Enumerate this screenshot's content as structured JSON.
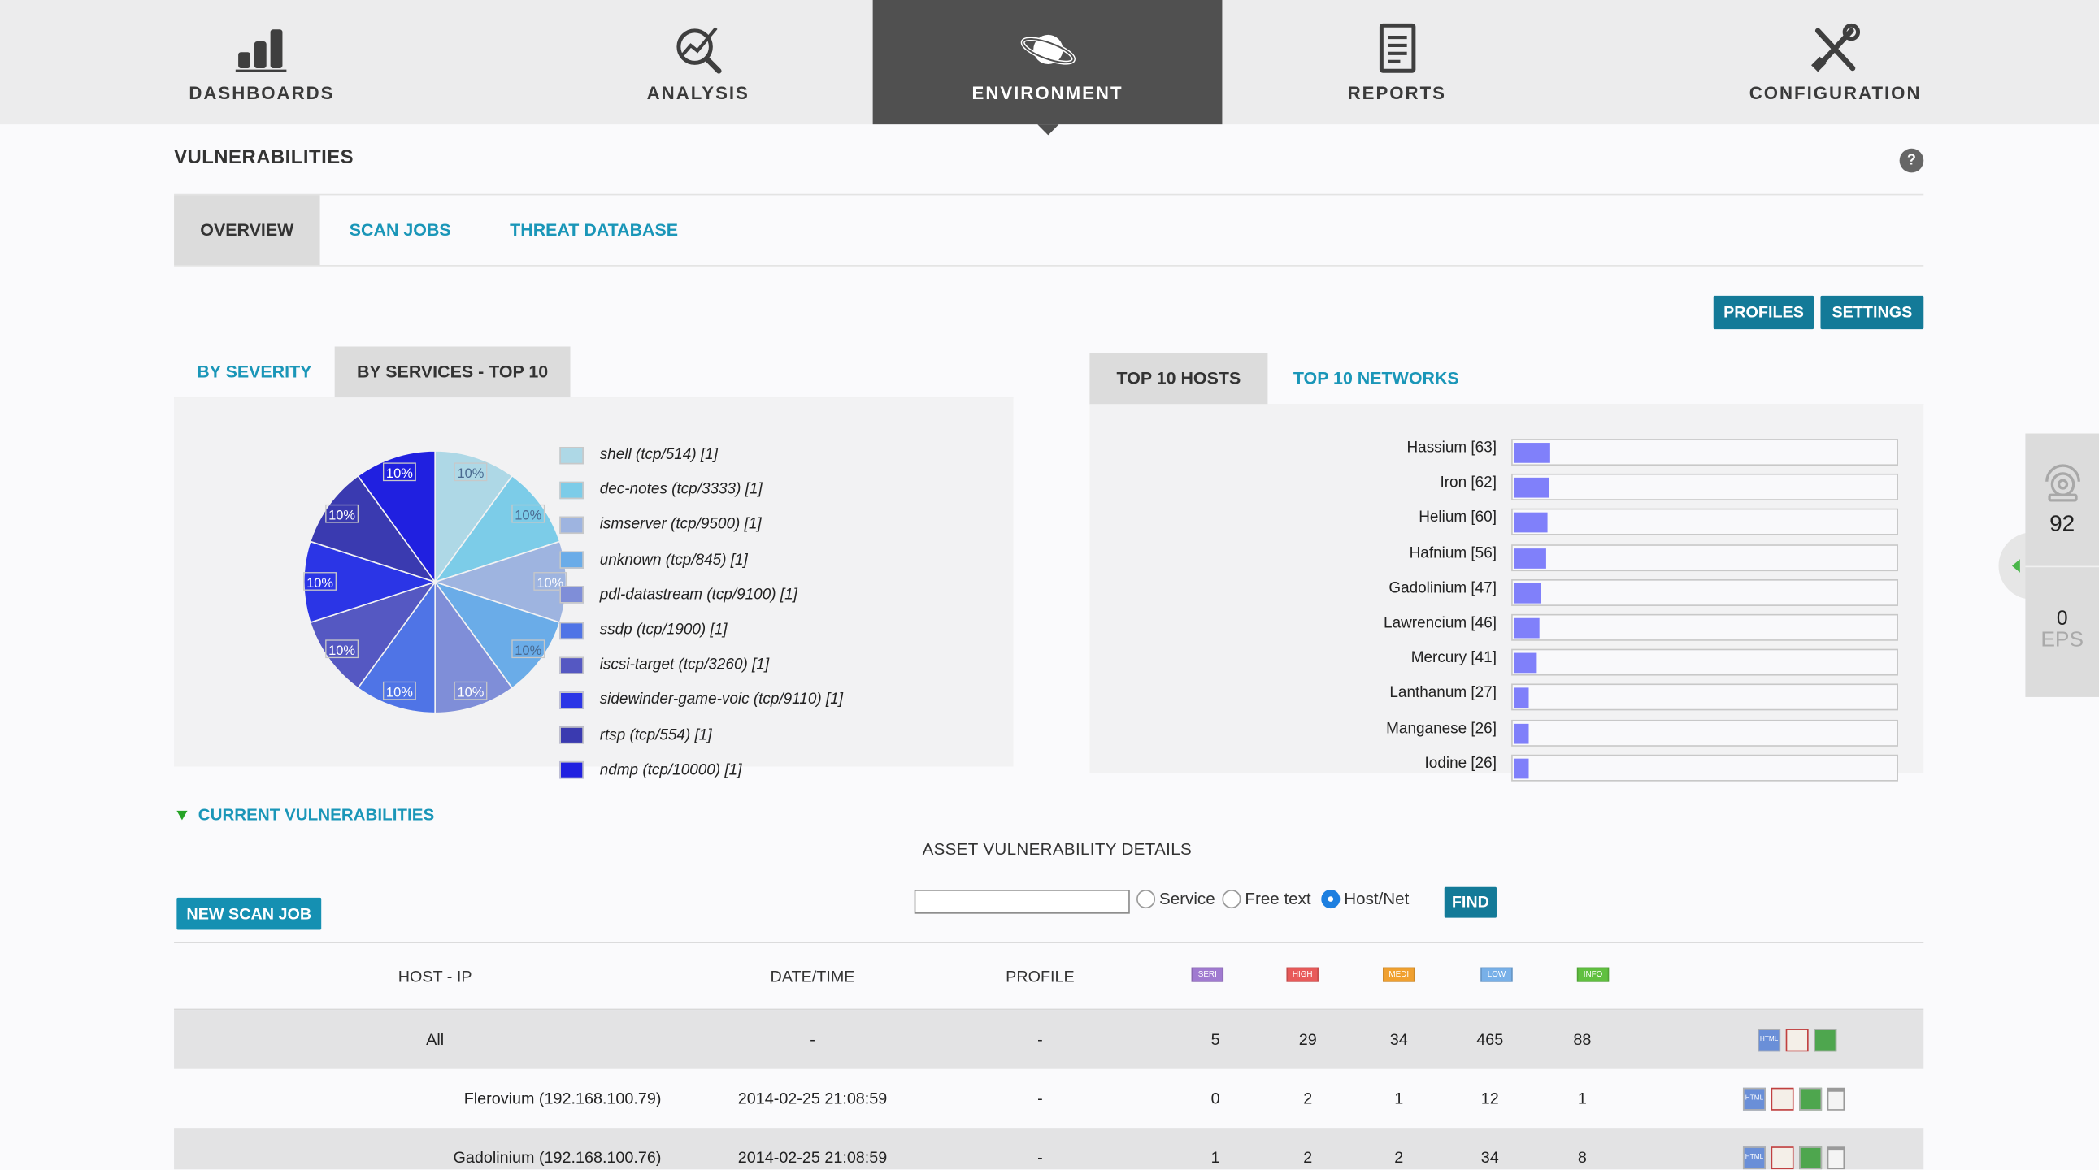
{
  "nav": {
    "items": [
      {
        "label": "DASHBOARDS",
        "icon": "bar-chart-icon"
      },
      {
        "label": "ANALYSIS",
        "icon": "magnifier-chart-icon"
      },
      {
        "label": "ENVIRONMENT",
        "icon": "planet-icon",
        "active": true
      },
      {
        "label": "REPORTS",
        "icon": "document-icon"
      },
      {
        "label": "CONFIGURATION",
        "icon": "tools-icon"
      }
    ]
  },
  "page": {
    "title": "VULNERABILITIES",
    "help": "?"
  },
  "tabs": {
    "overview": "OVERVIEW",
    "scan_jobs": "SCAN JOBS",
    "threat_db": "THREAT DATABASE"
  },
  "buttons": {
    "profiles": "PROFILES",
    "settings": "SETTINGS",
    "new_scan": "NEW SCAN JOB",
    "find": "FIND"
  },
  "left_tabs": {
    "by_severity": "BY SEVERITY",
    "by_services": "BY SERVICES - TOP 10"
  },
  "right_tabs": {
    "hosts": "TOP 10 HOSTS",
    "networks": "TOP 10 NETWORKS"
  },
  "chart_data": [
    {
      "type": "pie",
      "categories": [
        "shell (tcp/514) [1]",
        "dec-notes (tcp/3333) [1]",
        "ismserver (tcp/9500) [1]",
        "unknown (tcp/845) [1]",
        "pdl-datastream (tcp/9100) [1]",
        "ssdp (tcp/1900) [1]",
        "iscsi-target (tcp/3260) [1]",
        "sidewinder-game-voic (tcp/9110) [1]",
        "rtsp (tcp/554) [1]",
        "ndmp (tcp/10000) [1]"
      ],
      "values": [
        1,
        1,
        1,
        1,
        1,
        1,
        1,
        1,
        1,
        1
      ],
      "slice_labels": [
        "10%",
        "10%",
        "10%",
        "10%",
        "10%",
        "10%",
        "10%",
        "10%",
        "10%",
        "10%"
      ],
      "colors": [
        "#aed8e6",
        "#7ccce8",
        "#9eb4e0",
        "#6aace8",
        "#7f8ed8",
        "#4f74e6",
        "#5558c2",
        "#2b35e6",
        "#3a3ab0",
        "#2020e0"
      ],
      "legend": "right"
    },
    {
      "type": "bar",
      "orientation": "horizontal",
      "categories": [
        "Hassium [63]",
        "Iron [62]",
        "Helium [60]",
        "Hafnium [56]",
        "Gadolinium [47]",
        "Lawrencium [46]",
        "Mercury [41]",
        "Lanthanum [27]",
        "Manganese [26]",
        "Iodine [26]"
      ],
      "values": [
        63,
        62,
        60,
        56,
        47,
        46,
        41,
        27,
        26,
        26
      ],
      "xlim": [
        0,
        680
      ],
      "color": "#8080fa"
    }
  ],
  "current": {
    "title": "CURRENT VULNERABILITIES",
    "asset_title": "ASSET VULNERABILITY DETAILS"
  },
  "search": {
    "value": "",
    "options": [
      "Service",
      "Free text",
      "Host/Net"
    ],
    "selected": "Host/Net"
  },
  "table": {
    "headers": [
      "HOST - IP",
      "DATE/TIME",
      "PROFILE"
    ],
    "severity_badges": [
      {
        "label": "SERI",
        "color": "#a07ad0"
      },
      {
        "label": "HIGH",
        "color": "#e85a5a"
      },
      {
        "label": "MEDI",
        "color": "#f0a030"
      },
      {
        "label": "LOW",
        "color": "#78b0e8"
      },
      {
        "label": "INFO",
        "color": "#60c040"
      }
    ],
    "rows": [
      {
        "host": "All",
        "date": "-",
        "profile": "-",
        "seri": "5",
        "high": "29",
        "medi": "34",
        "low": "465",
        "info": "88",
        "delete": false
      },
      {
        "host": "Flerovium (192.168.100.79)",
        "date": "2014-02-25 21:08:59",
        "profile": "-",
        "seri": "0",
        "high": "2",
        "medi": "1",
        "low": "12",
        "info": "1",
        "delete": true
      },
      {
        "host": "Gadolinium (192.168.100.76)",
        "date": "2014-02-25 21:08:59",
        "profile": "-",
        "seri": "1",
        "high": "2",
        "medi": "2",
        "low": "34",
        "info": "8",
        "delete": true
      }
    ]
  },
  "side": {
    "count": "92",
    "eps_value": "0",
    "eps_label": "EPS"
  }
}
